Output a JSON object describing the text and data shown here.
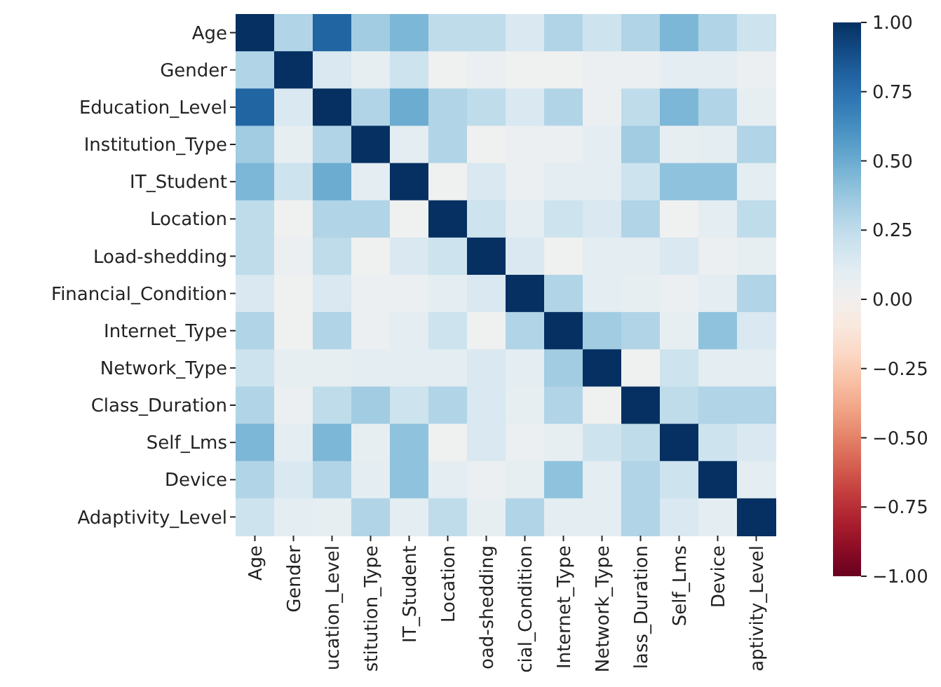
{
  "chart_data": {
    "type": "heatmap",
    "categories": [
      "Age",
      "Gender",
      "ucation_Level",
      "stitution_Type",
      "IT_Student",
      "Location",
      "oad-shedding",
      "cial_Condition",
      "Internet_Type",
      "Network_Type",
      "lass_Duration",
      "Self_Lms",
      "Device",
      "aptivity_Level"
    ],
    "y_categories": [
      "Age",
      "Gender",
      "Education_Level",
      "Institution_Type",
      "IT_Student",
      "Location",
      "Load-shedding",
      "Financial_Condition",
      "Internet_Type",
      "Network_Type",
      "Class_Duration",
      "Self_Lms",
      "Device",
      "Adaptivity_Level"
    ],
    "cells": [
      [
        1,
        0.3,
        0.8,
        0.35,
        0.45,
        0.25,
        0.25,
        0.15,
        0.3,
        0.2,
        0.3,
        0.45,
        0.3,
        0.2
      ],
      [
        0.3,
        1,
        0.15,
        0.08,
        0.2,
        0.02,
        0.05,
        0.02,
        0.02,
        0.05,
        0.05,
        0.1,
        0.1,
        0.05
      ],
      [
        0.8,
        0.15,
        1,
        0.3,
        0.5,
        0.3,
        0.25,
        0.15,
        0.3,
        0.05,
        0.25,
        0.45,
        0.3,
        0.08
      ],
      [
        0.35,
        0.08,
        0.3,
        1,
        0.1,
        0.3,
        0.02,
        0.05,
        0.05,
        0.1,
        0.35,
        0.08,
        0.1,
        0.3
      ],
      [
        0.45,
        0.2,
        0.5,
        0.1,
        1,
        0.02,
        0.15,
        0.05,
        0.1,
        0.1,
        0.2,
        0.4,
        0.4,
        0.1
      ],
      [
        0.25,
        0.02,
        0.3,
        0.3,
        0.02,
        1,
        0.2,
        0.1,
        0.2,
        0.15,
        0.3,
        0.02,
        0.1,
        0.25
      ],
      [
        0.25,
        0.05,
        0.25,
        0.02,
        0.15,
        0.2,
        1,
        0.15,
        0.02,
        0.1,
        0.1,
        0.15,
        0.05,
        0.08
      ],
      [
        0.15,
        0.02,
        0.15,
        0.05,
        0.05,
        0.1,
        0.15,
        1,
        0.3,
        0.1,
        0.08,
        0.05,
        0.1,
        0.3
      ],
      [
        0.3,
        0.02,
        0.3,
        0.05,
        0.1,
        0.2,
        0.02,
        0.3,
        1,
        0.35,
        0.3,
        0.08,
        0.4,
        0.15
      ],
      [
        0.2,
        0.08,
        0.08,
        0.1,
        0.1,
        0.1,
        0.15,
        0.1,
        0.35,
        1,
        0.02,
        0.2,
        0.1,
        0.1
      ],
      [
        0.3,
        0.05,
        0.25,
        0.35,
        0.2,
        0.3,
        0.15,
        0.08,
        0.3,
        0.02,
        1,
        0.25,
        0.3,
        0.3
      ],
      [
        0.45,
        0.1,
        0.45,
        0.08,
        0.4,
        0.02,
        0.15,
        0.05,
        0.08,
        0.2,
        0.25,
        1,
        0.2,
        0.15
      ],
      [
        0.3,
        0.15,
        0.3,
        0.1,
        0.4,
        0.1,
        0.05,
        0.08,
        0.4,
        0.1,
        0.3,
        0.2,
        1,
        0.1
      ],
      [
        0.2,
        0.1,
        0.08,
        0.3,
        0.1,
        0.25,
        0.08,
        0.3,
        0.1,
        0.1,
        0.3,
        0.15,
        0.1,
        1
      ]
    ],
    "clim": [
      -1,
      1
    ],
    "cticks": [
      {
        "value": 1,
        "label": "1.00"
      },
      {
        "value": 0.75,
        "label": "0.75"
      },
      {
        "value": 0.5,
        "label": "0.50"
      },
      {
        "value": 0.25,
        "label": "0.25"
      },
      {
        "value": 0,
        "label": "0.00"
      },
      {
        "value": -0.25,
        "label": "−0.25"
      },
      {
        "value": -0.5,
        "label": "−0.50"
      },
      {
        "value": -0.75,
        "label": "−0.75"
      },
      {
        "value": -1,
        "label": "−1.00"
      }
    ]
  }
}
